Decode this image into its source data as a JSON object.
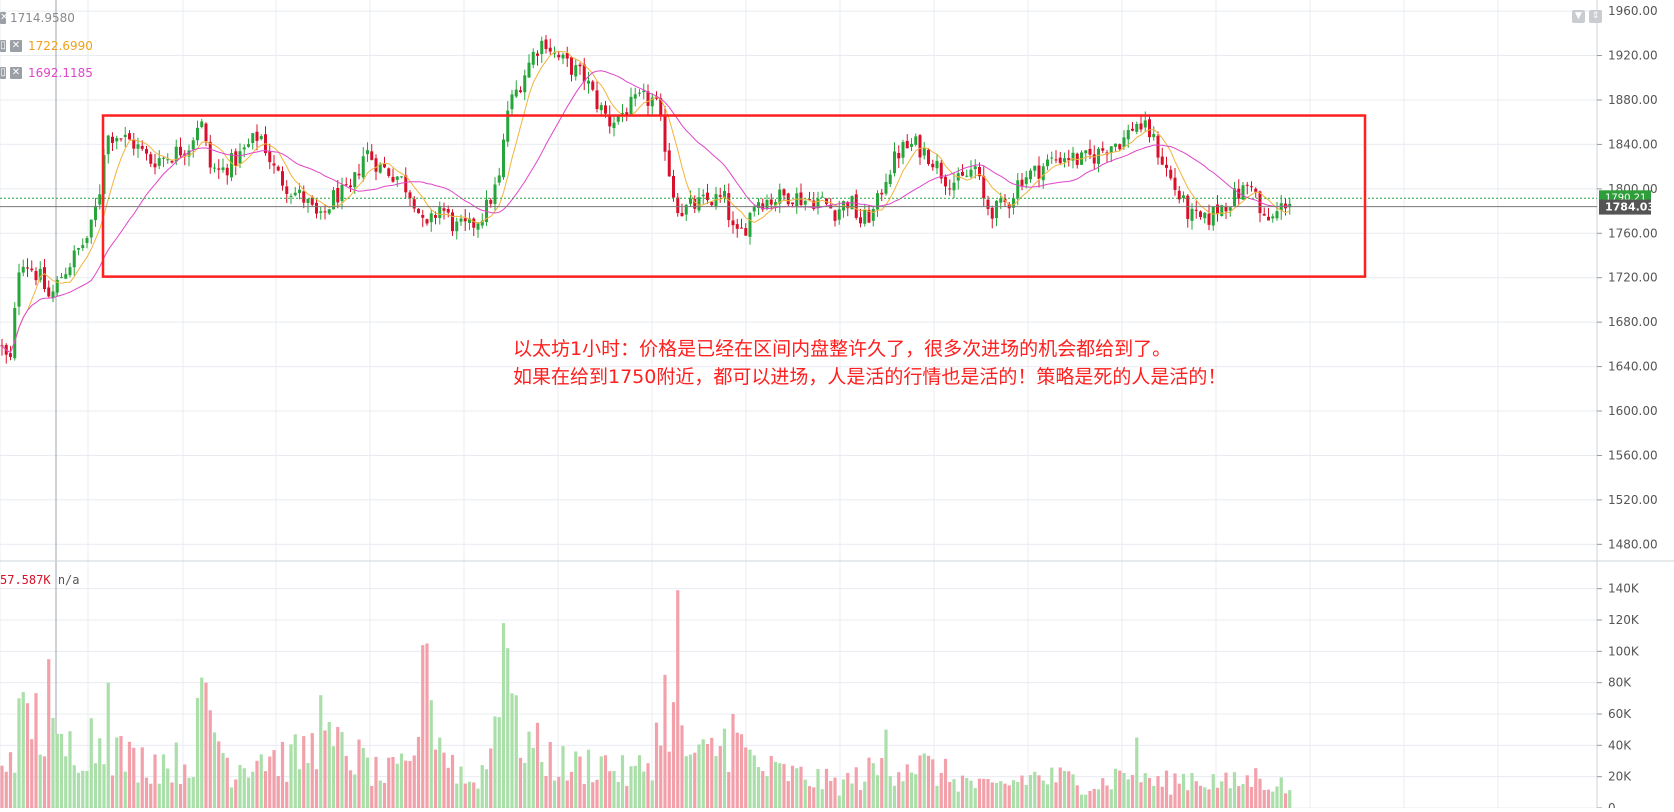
{
  "colors": {
    "up": "#26a63a",
    "down": "#d8102b",
    "vol_up": "#aadfaa",
    "vol_down": "#f2a0aa",
    "ma_fast": "#f2b33b",
    "ma_slow": "#e046c8",
    "grid": "#e8ecf1",
    "axis_text": "#555555",
    "range_box": "#ff1f1f",
    "price_tag": "#555555",
    "current_tag": "#2e9e3a"
  },
  "legend": [
    {
      "value": "1714.9580",
      "color": "#8a8a8a"
    },
    {
      "value": "1722.6990",
      "color": "#f2a01b"
    },
    {
      "value": "1692.1185",
      "color": "#e046c8"
    }
  ],
  "volume_legend": {
    "value": "57.587K",
    "extra": "n/a",
    "color": "#d8102b"
  },
  "annotation": {
    "line1": "以太坊1小时：价格是已经在区间内盘整许久了，很多次进场的机会都给到了。",
    "line2": "如果在给到1750附近，都可以进场，人是活的行情也是活的！策略是死的人是活的！"
  },
  "icons": {
    "collapse": "triangle-down-icon",
    "expand": "updown-arrows-icon"
  },
  "chart_data": {
    "type": "candlestick",
    "price_axis": {
      "ylim": [
        1465,
        1970
      ],
      "ticks": [
        "1960.00",
        "1920.00",
        "1880.00",
        "1840.00",
        "1800.00",
        "1760.00",
        "1720.00",
        "1680.00",
        "1640.00",
        "1600.00",
        "1560.00",
        "1520.00",
        "1480.00"
      ]
    },
    "volume_axis": {
      "ylim": [
        0,
        150000
      ],
      "ticks": [
        "140K",
        "120K",
        "100K",
        "80K",
        "60K",
        "40K",
        "20K",
        "0"
      ]
    },
    "current_price": "1784.03",
    "last_price_label": "1790.21",
    "price_levels": [
      1784.03,
      1791.5
    ],
    "range_box": {
      "high": 1866,
      "low": 1721,
      "x_start": 103,
      "x_end": 1365
    },
    "anchors": [
      [
        0,
        1660
      ],
      [
        10,
        1640
      ],
      [
        20,
        1740
      ],
      [
        40,
        1720
      ],
      [
        50,
        1700
      ],
      [
        60,
        1720
      ],
      [
        75,
        1740
      ],
      [
        90,
        1760
      ],
      [
        100,
        1800
      ],
      [
        105,
        1845
      ],
      [
        115,
        1850
      ],
      [
        135,
        1840
      ],
      [
        150,
        1825
      ],
      [
        170,
        1830
      ],
      [
        190,
        1840
      ],
      [
        200,
        1865
      ],
      [
        210,
        1820
      ],
      [
        220,
        1815
      ],
      [
        240,
        1830
      ],
      [
        260,
        1850
      ],
      [
        275,
        1815
      ],
      [
        290,
        1800
      ],
      [
        305,
        1790
      ],
      [
        320,
        1770
      ],
      [
        335,
        1795
      ],
      [
        350,
        1795
      ],
      [
        365,
        1835
      ],
      [
        380,
        1820
      ],
      [
        400,
        1810
      ],
      [
        415,
        1790
      ],
      [
        425,
        1760
      ],
      [
        440,
        1785
      ],
      [
        455,
        1765
      ],
      [
        470,
        1765
      ],
      [
        485,
        1780
      ],
      [
        500,
        1810
      ],
      [
        507,
        1870
      ],
      [
        520,
        1895
      ],
      [
        535,
        1925
      ],
      [
        545,
        1935
      ],
      [
        555,
        1920
      ],
      [
        570,
        1910
      ],
      [
        585,
        1900
      ],
      [
        595,
        1880
      ],
      [
        610,
        1860
      ],
      [
        625,
        1870
      ],
      [
        640,
        1880
      ],
      [
        655,
        1880
      ],
      [
        665,
        1840
      ],
      [
        672,
        1800
      ],
      [
        680,
        1780
      ],
      [
        695,
        1785
      ],
      [
        710,
        1790
      ],
      [
        725,
        1790
      ],
      [
        735,
        1755
      ],
      [
        745,
        1765
      ],
      [
        755,
        1790
      ],
      [
        770,
        1790
      ],
      [
        790,
        1795
      ],
      [
        805,
        1790
      ],
      [
        820,
        1790
      ],
      [
        835,
        1780
      ],
      [
        850,
        1790
      ],
      [
        860,
        1770
      ],
      [
        875,
        1780
      ],
      [
        885,
        1810
      ],
      [
        900,
        1835
      ],
      [
        915,
        1840
      ],
      [
        930,
        1830
      ],
      [
        945,
        1810
      ],
      [
        960,
        1805
      ],
      [
        975,
        1820
      ],
      [
        985,
        1785
      ],
      [
        995,
        1780
      ],
      [
        1010,
        1790
      ],
      [
        1020,
        1810
      ],
      [
        1035,
        1815
      ],
      [
        1050,
        1825
      ],
      [
        1065,
        1830
      ],
      [
        1080,
        1825
      ],
      [
        1095,
        1830
      ],
      [
        1110,
        1840
      ],
      [
        1125,
        1845
      ],
      [
        1135,
        1860
      ],
      [
        1150,
        1850
      ],
      [
        1160,
        1830
      ],
      [
        1175,
        1800
      ],
      [
        1190,
        1775
      ],
      [
        1205,
        1770
      ],
      [
        1215,
        1780
      ],
      [
        1230,
        1790
      ],
      [
        1245,
        1800
      ],
      [
        1252,
        1808
      ],
      [
        1262,
        1770
      ],
      [
        1272,
        1772
      ],
      [
        1287,
        1790
      ]
    ],
    "volume_anchors": [
      [
        0,
        25000
      ],
      [
        30,
        60000
      ],
      [
        60,
        35000
      ],
      [
        90,
        45000
      ],
      [
        110,
        40000
      ],
      [
        130,
        30000
      ],
      [
        160,
        30000
      ],
      [
        190,
        28000
      ],
      [
        205,
        70000
      ],
      [
        230,
        25000
      ],
      [
        260,
        35000
      ],
      [
        290,
        30000
      ],
      [
        320,
        40000
      ],
      [
        350,
        35000
      ],
      [
        380,
        20000
      ],
      [
        410,
        25000
      ],
      [
        425,
        80000
      ],
      [
        445,
        35000
      ],
      [
        470,
        15000
      ],
      [
        490,
        30000
      ],
      [
        502,
        115000
      ],
      [
        515,
        50000
      ],
      [
        540,
        35000
      ],
      [
        570,
        25000
      ],
      [
        600,
        30000
      ],
      [
        630,
        20000
      ],
      [
        650,
        30000
      ],
      [
        668,
        70000
      ],
      [
        680,
        40000
      ],
      [
        700,
        30000
      ],
      [
        730,
        45000
      ],
      [
        760,
        25000
      ],
      [
        800,
        20000
      ],
      [
        840,
        15000
      ],
      [
        880,
        25000
      ],
      [
        910,
        30000
      ],
      [
        950,
        20000
      ],
      [
        990,
        12000
      ],
      [
        1030,
        20000
      ],
      [
        1070,
        18000
      ],
      [
        1100,
        15000
      ],
      [
        1130,
        25000
      ],
      [
        1160,
        15000
      ],
      [
        1190,
        20000
      ],
      [
        1230,
        15000
      ],
      [
        1260,
        20000
      ],
      [
        1290,
        12000
      ]
    ],
    "volume_spikes": [
      [
        18,
        70000
      ],
      [
        50,
        95000
      ],
      [
        108,
        80000
      ],
      [
        208,
        80000
      ],
      [
        320,
        72000
      ],
      [
        425,
        105000
      ],
      [
        502,
        118000
      ],
      [
        508,
        102000
      ],
      [
        665,
        85000
      ],
      [
        677,
        139000
      ],
      [
        735,
        60000
      ],
      [
        887,
        50000
      ],
      [
        1135,
        45000
      ]
    ]
  }
}
